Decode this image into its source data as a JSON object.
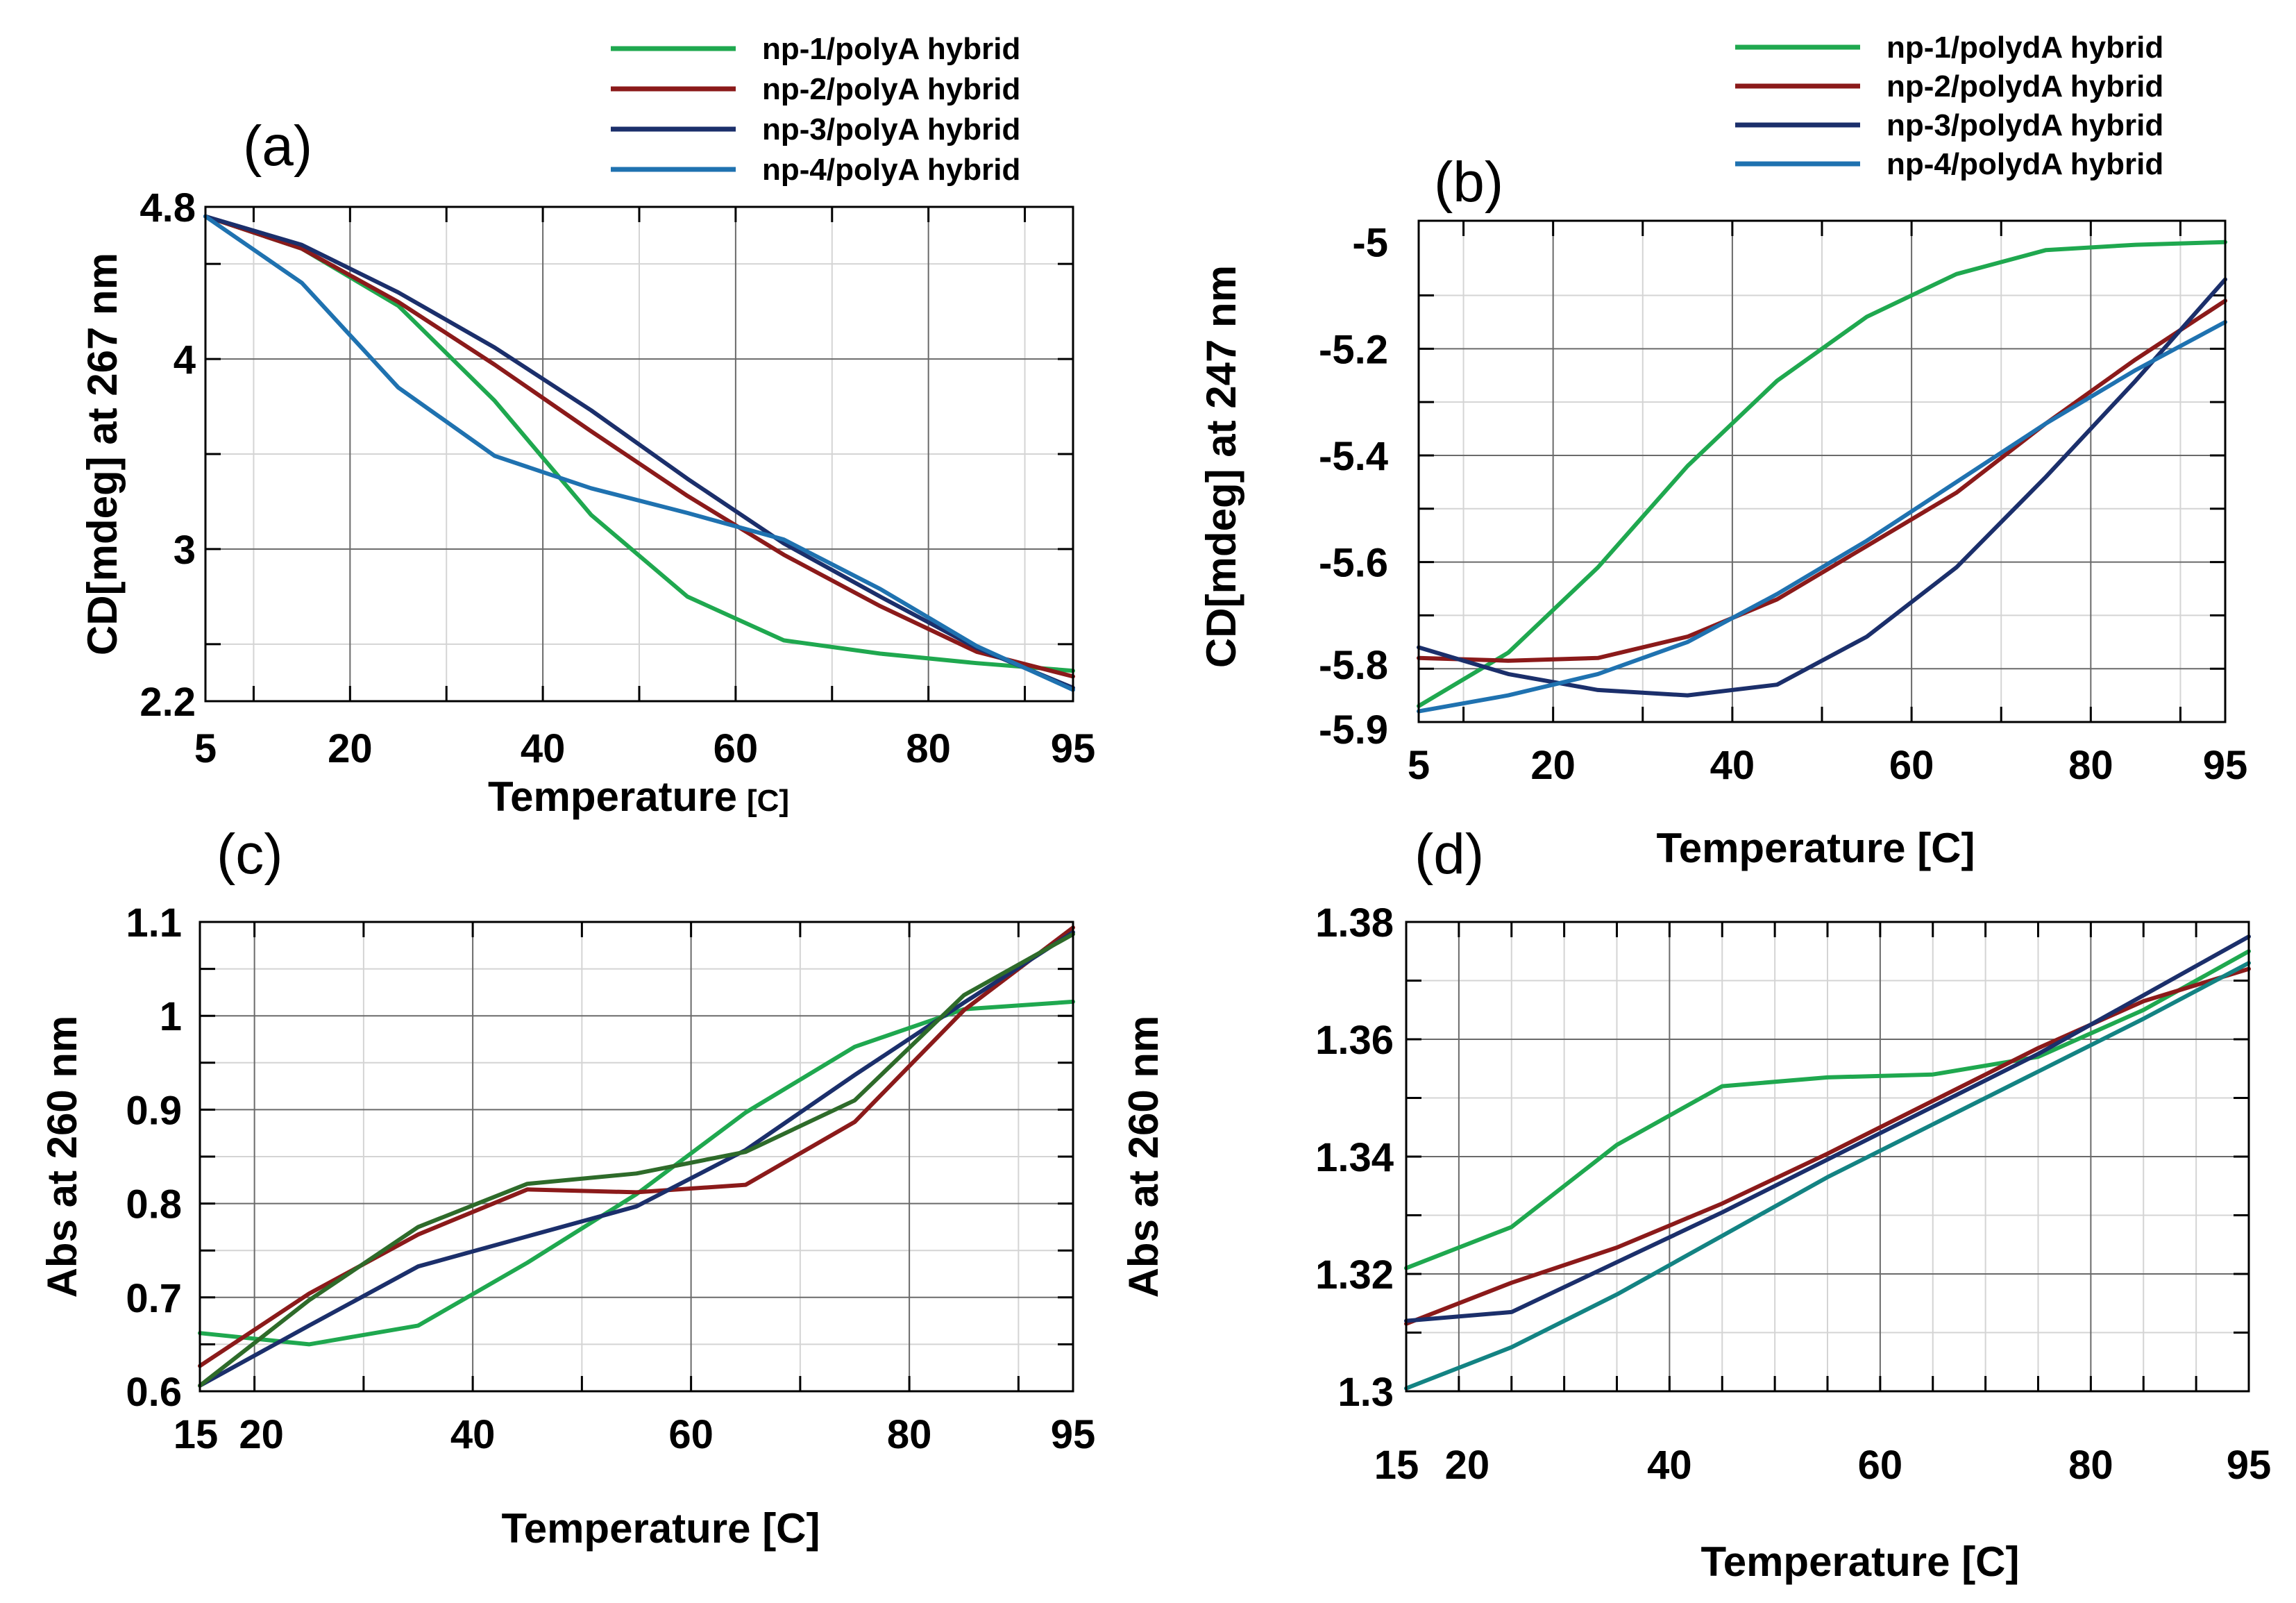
{
  "chart_data": [
    {
      "id": "a",
      "type": "line",
      "panel_label": "(a)",
      "xlabel": "Temperature",
      "xlabel_unit": "[C]",
      "ylabel_pre": "CD",
      "ylabel_unit": "[mdeg]",
      "ylabel_post": " at 267 nm",
      "xlim": [
        5,
        95
      ],
      "ylim": [
        2.2,
        4.8
      ],
      "xticks": [
        5,
        20,
        40,
        60,
        80,
        95
      ],
      "yticks": [
        2.2,
        3,
        4,
        4.8
      ],
      "x_major_grid": [
        20,
        40,
        60,
        80
      ],
      "x_minor_grid": [
        10,
        30,
        50,
        70,
        90
      ],
      "y_major_grid": [
        3,
        4
      ],
      "y_minor_grid": [
        2.5,
        3.5,
        4.5
      ],
      "legend_position": "top-right",
      "series": [
        {
          "name": "np-1/polyA hybrid",
          "color": "#1fa84f",
          "x": [
            5,
            15,
            25,
            35,
            45,
            55,
            65,
            75,
            85,
            95
          ],
          "y": [
            4.75,
            4.58,
            4.28,
            3.78,
            3.18,
            2.75,
            2.52,
            2.45,
            2.4,
            2.36
          ]
        },
        {
          "name": "np-2/polyA hybrid",
          "color": "#8b1a1a",
          "x": [
            5,
            15,
            25,
            35,
            45,
            55,
            65,
            75,
            85,
            95
          ],
          "y": [
            4.75,
            4.58,
            4.3,
            3.97,
            3.62,
            3.28,
            2.97,
            2.7,
            2.46,
            2.33
          ]
        },
        {
          "name": "np-3/polyA hybrid",
          "color": "#1b2f6b",
          "x": [
            5,
            15,
            25,
            35,
            45,
            55,
            65,
            75,
            85,
            95
          ],
          "y": [
            4.75,
            4.6,
            4.35,
            4.06,
            3.73,
            3.37,
            3.03,
            2.75,
            2.48,
            2.27
          ]
        },
        {
          "name": "np-4/polyA hybrid",
          "color": "#1f72b0",
          "x": [
            5,
            15,
            25,
            35,
            45,
            55,
            65,
            75,
            85,
            95
          ],
          "y": [
            4.75,
            4.4,
            3.85,
            3.49,
            3.32,
            3.19,
            3.05,
            2.79,
            2.49,
            2.26
          ]
        }
      ]
    },
    {
      "id": "b",
      "type": "line",
      "panel_label": "(b)",
      "xlabel": "Temperature [C]",
      "ylabel_pre": "CD",
      "ylabel_unit": "[mdeg]",
      "ylabel_post": " at 247 nm",
      "xlim": [
        5,
        95
      ],
      "ylim": [
        -5.9,
        -4.96
      ],
      "xticks": [
        5,
        20,
        40,
        60,
        80,
        95
      ],
      "yticks": [
        -5,
        -5.2,
        -5.4,
        -5.6,
        -5.8,
        -5.9
      ],
      "x_major_grid": [
        20,
        40,
        60,
        80
      ],
      "x_minor_grid": [
        10,
        30,
        50,
        70,
        90
      ],
      "y_major_grid": [
        -5.2,
        -5.4,
        -5.6,
        -5.8
      ],
      "y_minor_grid": [
        -5.1,
        -5.3,
        -5.5,
        -5.7
      ],
      "legend_position": "top-right",
      "series": [
        {
          "name": "np-1/polydA hybrid",
          "color": "#1fa84f",
          "x": [
            5,
            15,
            25,
            35,
            45,
            55,
            65,
            75,
            85,
            95
          ],
          "y": [
            -5.87,
            -5.77,
            -5.61,
            -5.42,
            -5.26,
            -5.14,
            -5.06,
            -5.015,
            -5.005,
            -5.0
          ]
        },
        {
          "name": "np-2/polydA hybrid",
          "color": "#8b1a1a",
          "x": [
            5,
            15,
            25,
            35,
            45,
            55,
            65,
            75,
            85,
            95
          ],
          "y": [
            -5.78,
            -5.785,
            -5.78,
            -5.74,
            -5.67,
            -5.57,
            -5.47,
            -5.34,
            -5.22,
            -5.11
          ]
        },
        {
          "name": "np-3/polydA hybrid",
          "color": "#1b2f6b",
          "x": [
            5,
            15,
            25,
            35,
            45,
            55,
            65,
            75,
            85,
            95
          ],
          "y": [
            -5.76,
            -5.81,
            -5.84,
            -5.85,
            -5.83,
            -5.74,
            -5.61,
            -5.44,
            -5.26,
            -5.07
          ]
        },
        {
          "name": "np-4/polydA hybrid",
          "color": "#1f72b0",
          "x": [
            5,
            15,
            25,
            35,
            45,
            55,
            65,
            75,
            85,
            95
          ],
          "y": [
            -5.88,
            -5.85,
            -5.81,
            -5.75,
            -5.66,
            -5.56,
            -5.45,
            -5.34,
            -5.24,
            -5.15
          ]
        }
      ]
    },
    {
      "id": "c",
      "type": "line",
      "panel_label": "(c)",
      "xlabel": "Temperature [C]",
      "ylabel": "Abs at 260 nm",
      "xlim": [
        15,
        95
      ],
      "ylim": [
        0.6,
        1.1
      ],
      "xticks": [
        15,
        20,
        40,
        60,
        80,
        95
      ],
      "yticks": [
        0.6,
        0.7,
        0.8,
        0.9,
        1,
        1.1
      ],
      "x_major_grid": [
        20,
        40,
        60,
        80
      ],
      "x_minor_grid": [
        30,
        50,
        70,
        90
      ],
      "y_major_grid": [
        0.7,
        0.8,
        0.9,
        1
      ],
      "y_minor_grid": [
        0.65,
        0.75,
        0.85,
        0.95,
        1.05
      ],
      "series": [
        {
          "name": "np-1",
          "color": "#1fa84f",
          "x": [
            15,
            25,
            35,
            45,
            55,
            65,
            75,
            85,
            95
          ],
          "y": [
            0.662,
            0.65,
            0.67,
            0.737,
            0.81,
            0.897,
            0.967,
            1.007,
            1.015
          ]
        },
        {
          "name": "np-2",
          "color": "#8b1a1a",
          "x": [
            15,
            25,
            35,
            45,
            55,
            65,
            75,
            85,
            95
          ],
          "y": [
            0.627,
            0.704,
            0.767,
            0.815,
            0.812,
            0.82,
            0.887,
            1.006,
            1.094
          ]
        },
        {
          "name": "np-3",
          "color": "#1b2f6b",
          "x": [
            15,
            25,
            35,
            45,
            55,
            65,
            75,
            85,
            95
          ],
          "y": [
            0.606,
            0.67,
            0.733,
            0.765,
            0.797,
            0.857,
            0.937,
            1.014,
            1.089
          ]
        },
        {
          "name": "np-4",
          "color": "#2e6b2a",
          "x": [
            15,
            25,
            35,
            45,
            55,
            65,
            75,
            85,
            95
          ],
          "y": [
            0.606,
            0.697,
            0.775,
            0.821,
            0.832,
            0.855,
            0.91,
            1.022,
            1.087
          ]
        }
      ]
    },
    {
      "id": "d",
      "type": "line",
      "panel_label": "(d)",
      "xlabel": "Temperature [C]",
      "ylabel": "Abs at 260 nm",
      "xlim": [
        15,
        95
      ],
      "ylim": [
        1.3,
        1.38
      ],
      "xticks": [
        15,
        20,
        40,
        60,
        80,
        95
      ],
      "yticks": [
        1.3,
        1.32,
        1.34,
        1.36,
        1.38
      ],
      "x_major_grid": [
        20,
        40,
        60,
        80
      ],
      "x_minor_grid": [
        25,
        30,
        35,
        45,
        50,
        55,
        65,
        70,
        75,
        85,
        90
      ],
      "y_major_grid": [
        1.32,
        1.34,
        1.36
      ],
      "y_minor_grid": [
        1.31,
        1.33,
        1.35,
        1.37
      ],
      "series": [
        {
          "name": "np-1",
          "color": "#1fa84f",
          "x": [
            15,
            25,
            35,
            45,
            55,
            65,
            75,
            85,
            95
          ],
          "y": [
            1.321,
            1.328,
            1.342,
            1.352,
            1.3535,
            1.354,
            1.357,
            1.365,
            1.375
          ]
        },
        {
          "name": "np-2",
          "color": "#8b1a1a",
          "x": [
            15,
            25,
            35,
            45,
            55,
            65,
            75,
            85,
            95
          ],
          "y": [
            1.3115,
            1.3185,
            1.3245,
            1.332,
            1.3405,
            1.3495,
            1.3585,
            1.3665,
            1.372
          ]
        },
        {
          "name": "np-3",
          "color": "#1b2f6b",
          "x": [
            15,
            25,
            35,
            45,
            55,
            65,
            75,
            85,
            95
          ],
          "y": [
            1.312,
            1.3135,
            1.322,
            1.3305,
            1.3395,
            1.3485,
            1.3575,
            1.3675,
            1.3775
          ]
        },
        {
          "name": "np-4",
          "color": "#138383",
          "x": [
            15,
            25,
            35,
            45,
            55,
            65,
            75,
            85,
            95
          ],
          "y": [
            1.3005,
            1.3075,
            1.3165,
            1.3265,
            1.3365,
            1.3455,
            1.3545,
            1.3635,
            1.373
          ]
        }
      ]
    }
  ]
}
